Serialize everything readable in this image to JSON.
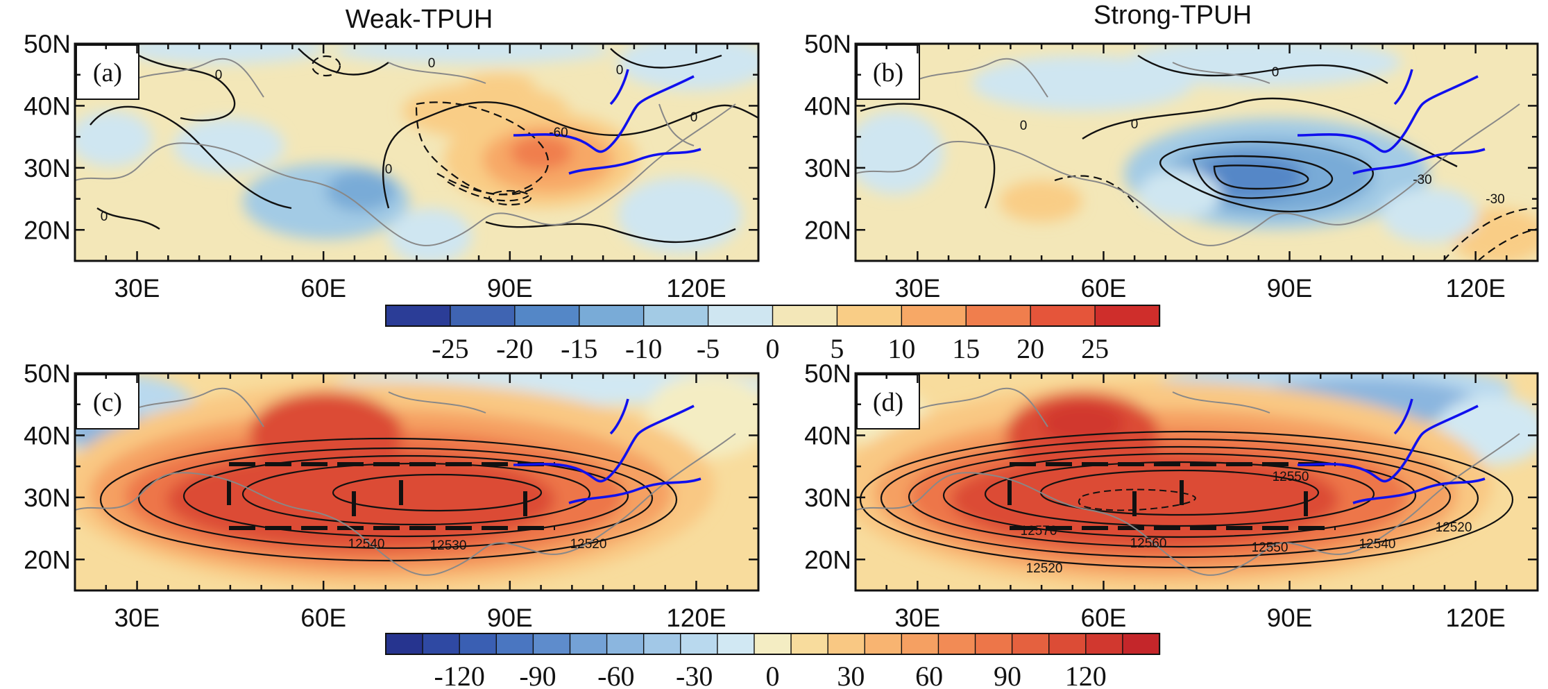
{
  "figure": {
    "column_titles": [
      "Weak-TPUH",
      "Strong-TPUH"
    ],
    "lat_labels": [
      "50N",
      "40N",
      "30N",
      "20N"
    ],
    "lon_labels": [
      "30E",
      "60E",
      "90E",
      "120E"
    ],
    "panels": [
      {
        "label": "(a)",
        "contour_labels": [
          "0",
          "0",
          "0",
          "0",
          "0",
          "-60",
          "0"
        ]
      },
      {
        "label": "(b)",
        "contour_labels": [
          "0",
          "0",
          "0",
          "-30",
          "-30"
        ]
      },
      {
        "label": "(c)",
        "contour_labels": [
          "12540",
          "12530",
          "12520"
        ]
      },
      {
        "label": "(d)",
        "contour_labels": [
          "12550",
          "12570",
          "12560",
          "12550",
          "12540",
          "12520",
          "12520"
        ]
      }
    ],
    "colorbars": [
      {
        "labels": [
          "-25",
          "-20",
          "-15",
          "-10",
          "-5",
          "0",
          "5",
          "10",
          "15",
          "20",
          "25"
        ],
        "colors": [
          "#2b3d97",
          "#3f64b2",
          "#5487c7",
          "#79abd7",
          "#a3cbe5",
          "#cfe6f1",
          "#f3e7b8",
          "#f9cd86",
          "#f7a866",
          "#f07e4d",
          "#e5553a",
          "#cf2e2b"
        ]
      },
      {
        "labels": [
          "-120",
          "-90",
          "-60",
          "-30",
          "0",
          "30",
          "60",
          "90",
          "120"
        ],
        "colors": [
          "#26348f",
          "#2f49a3",
          "#3a5fb3",
          "#4a76c1",
          "#5e8ccc",
          "#74a2d6",
          "#8bb6df",
          "#a2c8e7",
          "#b9d9ee",
          "#d1e8f3",
          "#f4edc3",
          "#f8dc9d",
          "#f9c883",
          "#f8b471",
          "#f5a062",
          "#f28b55",
          "#ed7649",
          "#e5613f",
          "#dc4c36",
          "#d1382f",
          "#c4262a"
        ]
      }
    ]
  },
  "colors": {
    "river": "#1010ee",
    "coast": "#888888",
    "contour": "#111111"
  }
}
